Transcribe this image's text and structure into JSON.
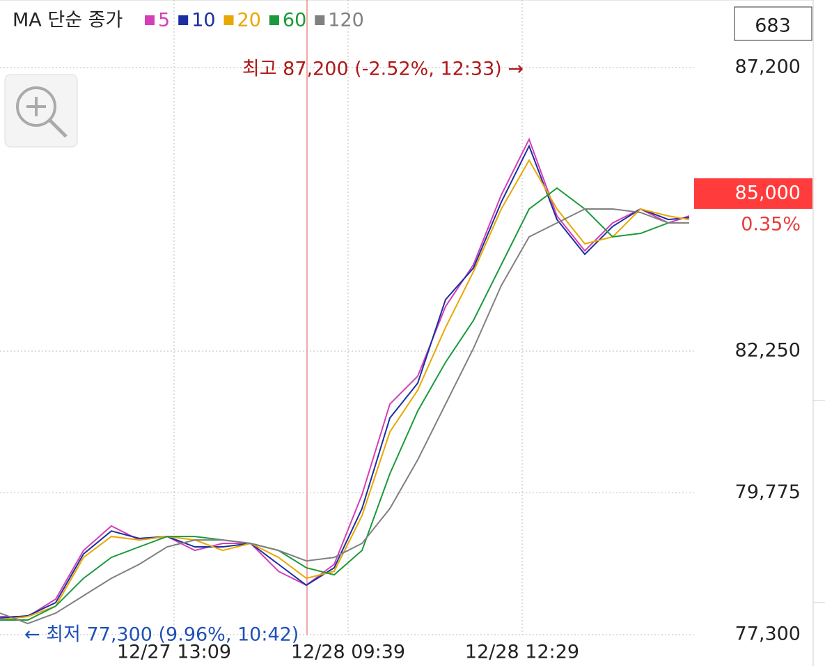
{
  "chart_data": {
    "type": "line",
    "title": "MA 단순 종가",
    "indicator_box": "683",
    "current_price": {
      "value": 85000,
      "label": "85,000"
    },
    "change": "0.35%",
    "annotations": {
      "high": "최고 87,200 (-2.52%, 12:33) →",
      "low": "← 최저 77,300 (9.96%, 10:42)"
    },
    "x": [
      0,
      4,
      8,
      12,
      16,
      20,
      24,
      28,
      32,
      36,
      40,
      44,
      48,
      52,
      56,
      60,
      64,
      68,
      72,
      76,
      80,
      84,
      88,
      92,
      96,
      99
    ],
    "xlim": [
      0,
      99.7
    ],
    "xticks": [
      {
        "value": 25,
        "label": "12/27 13:09"
      },
      {
        "value": 50,
        "label": "12/28 09:39"
      },
      {
        "value": 75,
        "label": "12/28 12:29"
      }
    ],
    "ylim": [
      77300,
      87200
    ],
    "yticks": [
      {
        "value": 77300,
        "label": "77,300"
      },
      {
        "value": 79775,
        "label": "79,775"
      },
      {
        "value": 82250,
        "label": "82,250"
      },
      {
        "value": 87200,
        "label": "87,200"
      }
    ],
    "grid": true,
    "series": [
      {
        "name": "5",
        "color": "#d43fb8",
        "values": [
          77616,
          77616,
          77920,
          78771,
          79197,
          78953,
          79014,
          78771,
          78893,
          78893,
          78406,
          78163,
          78528,
          79744,
          81326,
          81812,
          83029,
          83758,
          84975,
          85948,
          84609,
          84001,
          84488,
          84731,
          84488,
          84609
        ]
      },
      {
        "name": "10",
        "color": "#1b2fa3",
        "values": [
          77590,
          77630,
          77860,
          78710,
          79110,
          78980,
          79014,
          78832,
          78832,
          78893,
          78528,
          78163,
          78467,
          79501,
          81083,
          81690,
          83150,
          83700,
          84850,
          85830,
          84548,
          83940,
          84427,
          84731,
          84548,
          84580
        ]
      },
      {
        "name": "20",
        "color": "#e8a800",
        "values": [
          77555,
          77616,
          77798,
          78649,
          79014,
          78953,
          79014,
          78953,
          78771,
          78893,
          78649,
          78284,
          78406,
          79379,
          80839,
          81569,
          82664,
          83636,
          84731,
          85582,
          84731,
          84123,
          84244,
          84731,
          84609,
          84548
        ]
      },
      {
        "name": "60",
        "color": "#1a9a3a",
        "values": [
          77555,
          77555,
          77798,
          78284,
          78649,
          78832,
          79014,
          79014,
          78953,
          78893,
          78771,
          78467,
          78345,
          78771,
          80109,
          81204,
          82055,
          82785,
          83758,
          84731,
          85096,
          84731,
          84244,
          84305,
          84488,
          84488
        ]
      },
      {
        "name": "120",
        "color": "#808080",
        "values": [
          77676,
          77494,
          77676,
          77980,
          78284,
          78528,
          78832,
          78953,
          78953,
          78893,
          78771,
          78588,
          78649,
          78893,
          79501,
          80353,
          81326,
          82298,
          83393,
          84244,
          84488,
          84731,
          84731,
          84670,
          84488,
          84488
        ]
      }
    ]
  }
}
